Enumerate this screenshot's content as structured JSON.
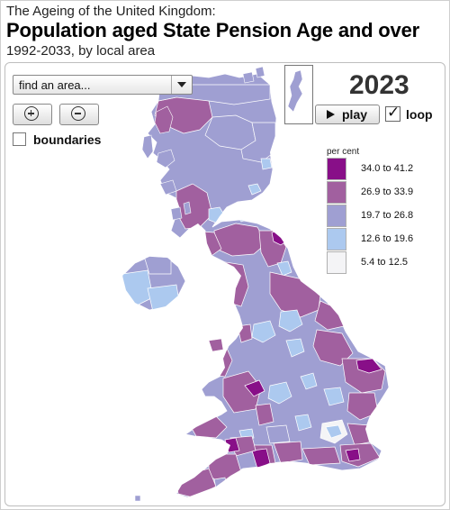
{
  "header": {
    "kicker": "The Ageing of the United Kingdom:",
    "title": "Population aged State Pension Age and over",
    "subtitle": "1992-2033, by local area"
  },
  "controls": {
    "find_placeholder": "find an area...",
    "zoom_in_icon": "zoom-in-icon",
    "zoom_out_icon": "zoom-out-icon",
    "boundaries_label": "boundaries",
    "boundaries_checked": false,
    "play_label": "play",
    "loop_label": "loop",
    "loop_checked": true,
    "year": "2023"
  },
  "legend": {
    "title": "per cent",
    "classes": [
      {
        "label": "34.0 to 41.2",
        "color": "#880f88"
      },
      {
        "label": "26.9 to 33.9",
        "color": "#a1609f"
      },
      {
        "label": "19.7 to 26.8",
        "color": "#9f9fd2"
      },
      {
        "label": "12.6 to 19.6",
        "color": "#acc9ef"
      },
      {
        "label": "5.4 to 12.5",
        "color": "#f4f4f6"
      }
    ]
  }
}
